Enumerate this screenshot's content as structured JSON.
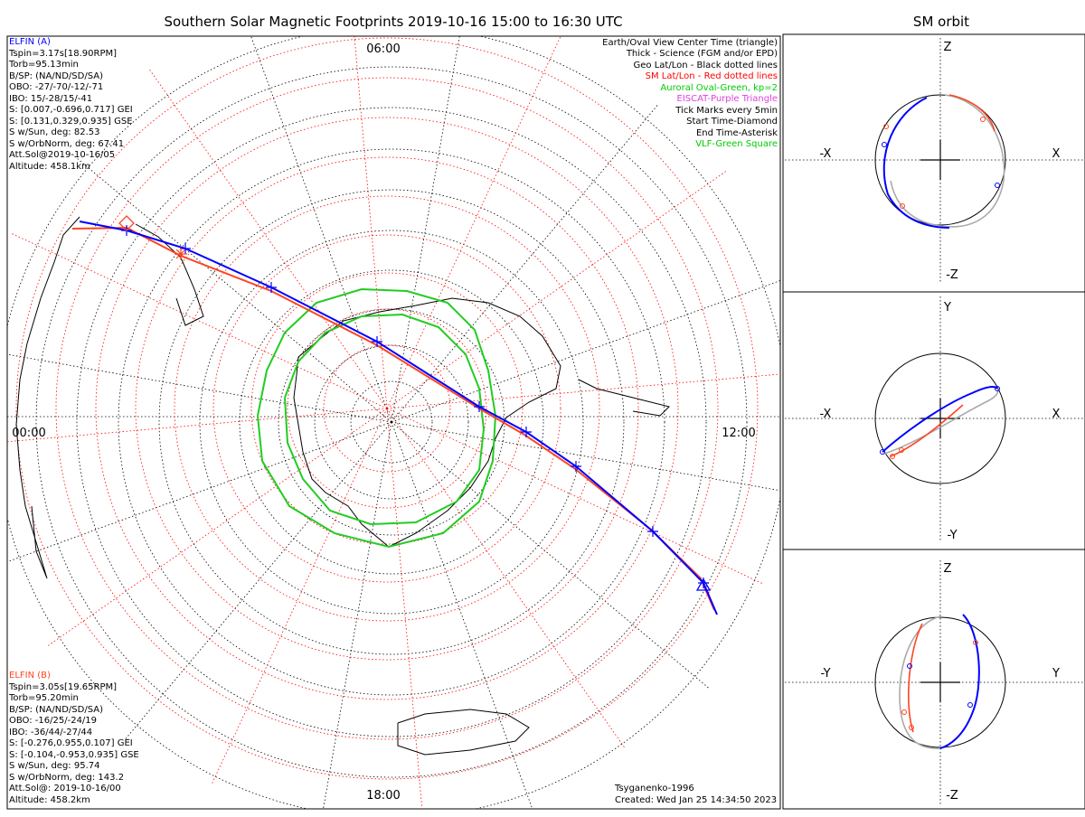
{
  "title": "Southern Solar Magnetic Footprints 2019-10-16 15:00 to 16:30 UTC",
  "right_title": "SM orbit",
  "main": {
    "time_labels": [
      "06:00",
      "12:00",
      "18:00",
      "00:00"
    ]
  },
  "info_a": {
    "header": "ELFIN (A)",
    "lines": [
      "Tspin=3.17s[18.90RPM]",
      "Torb=95.13min",
      "B/SP: (NA/ND/SD/SA)",
      "OBO: -27/-70/-12/-71",
      "IBO: 15/-28/15/-41",
      "S: [0.007,-0.696,0.717] GEI",
      "S: [0.131,0.329,0.935] GSE",
      "S w/Sun, deg: 82.53",
      "S w/OrbNorm, deg: 67.41",
      "Att.Sol@2019-10-16/05",
      "Altitude: 458.1km"
    ]
  },
  "info_b": {
    "header": "ELFIN (B)",
    "lines": [
      "Tspin=3.05s[19.65RPM]",
      "Torb=95.20min",
      "B/SP: (NA/ND/SD/SA)",
      "OBO: -16/25/-24/19",
      "IBO: -36/44/-27/44",
      "S: [-0.276,0.955,0.107] GEI",
      "S: [-0.104,-0.953,0.935] GSE",
      "S w/Sun, deg: 95.74",
      "S w/OrbNorm, deg: 143.2",
      "Att.Sol@: 2019-10-16/00",
      "Altitude: 458.2km"
    ]
  },
  "legend": [
    {
      "text": "Earth/Oval View Center Time (triangle)",
      "color": "#000000"
    },
    {
      "text": "Thick - Science (FGM and/or EPD)",
      "color": "#000000"
    },
    {
      "text": "Geo Lat/Lon - Black dotted lines",
      "color": "#000000"
    },
    {
      "text": "SM Lat/Lon - Red dotted lines",
      "color": "#ff0000"
    },
    {
      "text": "Auroral Oval-Green, kp=2",
      "color": "#00cc00"
    },
    {
      "text": "EISCAT-Purple Triangle",
      "color": "#e040e0"
    },
    {
      "text": "Tick Marks every 5min",
      "color": "#000000"
    },
    {
      "text": "Start Time-Diamond",
      "color": "#000000"
    },
    {
      "text": "End Time-Asterisk",
      "color": "#000000"
    },
    {
      "text": "VLF-Green Square",
      "color": "#00cc00"
    }
  ],
  "credits": {
    "model": "Tsyganenko-1996",
    "created": "Created: Wed Jan 25 14:34:50 2023"
  },
  "orbit_panels": [
    {
      "left": "-X",
      "right": "X",
      "top": "Z",
      "bottom": "-Z"
    },
    {
      "left": "-X",
      "right": "X",
      "top": "Y",
      "bottom": "-Y"
    },
    {
      "left": "-Y",
      "right": "Y",
      "top": "Z",
      "bottom": "-Z"
    }
  ],
  "colors": {
    "elfin_a": "#0000ff",
    "elfin_b": "#ff4422",
    "oval": "#22cc22",
    "sm_grid": "#ff0000",
    "geo_grid": "#000000",
    "orbit_gray": "#aaaaaa"
  },
  "chart_data": {
    "type": "scatter",
    "projection": "southern polar",
    "series": [
      {
        "name": "ELFIN (A)",
        "color": "#0000ff"
      },
      {
        "name": "ELFIN (B)",
        "color": "#ff4422"
      }
    ]
  }
}
